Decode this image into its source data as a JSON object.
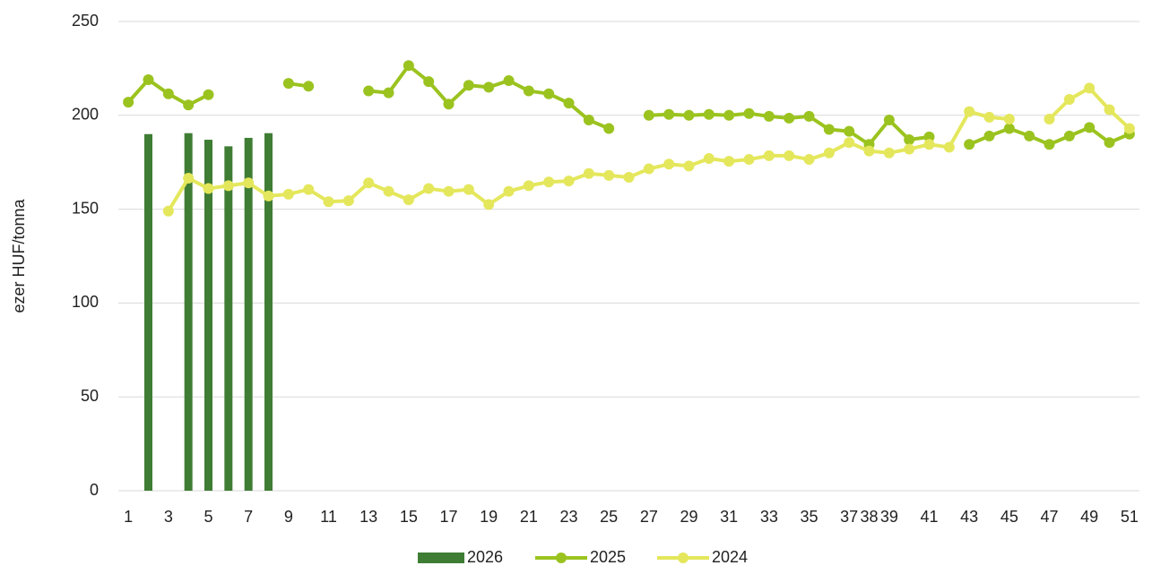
{
  "chart_data": {
    "type": "combo",
    "y_label": "ezer HUF/tonna",
    "categories": [
      "1",
      null,
      "3",
      null,
      "5",
      null,
      "7",
      null,
      "9",
      null,
      "11",
      null,
      "13",
      null,
      "15",
      null,
      "17",
      null,
      "19",
      null,
      "21",
      null,
      "23",
      null,
      "25",
      null,
      "27",
      null,
      "29",
      null,
      "31",
      null,
      "33",
      null,
      "35",
      null,
      "37",
      "38",
      "39",
      null,
      "41",
      null,
      "43",
      null,
      "45",
      null,
      "47",
      null,
      "49",
      null,
      "51"
    ],
    "series": [
      {
        "name": "2026",
        "type": "bar",
        "color": "#3f7d34",
        "values": [
          null,
          190,
          null,
          190.5,
          187,
          183.5,
          188,
          190.5,
          null,
          null,
          null,
          null,
          null,
          null,
          null,
          null,
          null,
          null,
          null,
          null,
          null,
          null,
          null,
          null,
          null,
          null,
          null,
          null,
          null,
          null,
          null,
          null,
          null,
          null,
          null,
          null,
          null,
          null,
          null,
          null,
          null,
          null,
          null,
          null,
          null,
          null,
          null,
          null,
          null,
          null,
          null
        ]
      },
      {
        "name": "2025",
        "type": "line",
        "color": "#9bc31f",
        "values": [
          207,
          219,
          211.5,
          205.5,
          211,
          null,
          null,
          null,
          217,
          215.5,
          null,
          null,
          213,
          212,
          226.5,
          218,
          206,
          216,
          215,
          218.5,
          213,
          211.5,
          206.5,
          197.5,
          193,
          null,
          200,
          200.5,
          200,
          200.5,
          200,
          201,
          199.5,
          198.5,
          199.5,
          192.5,
          191.5,
          184.5,
          197.5,
          187,
          188.5,
          null,
          184.5,
          189,
          193,
          189,
          184.5,
          189,
          193.5,
          185.5,
          190
        ]
      },
      {
        "name": "2024",
        "type": "line",
        "color": "#e4e75b",
        "values": [
          null,
          null,
          149,
          166.5,
          161,
          162.5,
          164,
          157,
          158,
          160.5,
          154,
          154.5,
          164,
          159.5,
          155,
          161,
          159.5,
          160.5,
          152.5,
          159.5,
          162.5,
          164.5,
          165,
          169,
          168,
          167,
          171.5,
          174,
          173,
          177,
          175.5,
          176.5,
          178.5,
          178.5,
          176.5,
          180,
          185.5,
          181,
          180,
          182,
          184.5,
          183,
          202,
          199,
          198,
          null,
          198,
          208.5,
          214.5,
          203,
          193
        ]
      }
    ],
    "ylim": [
      0,
      250
    ],
    "yticks": [
      0,
      50,
      100,
      150,
      200,
      250
    ],
    "grid": true,
    "legend": "bottom"
  }
}
